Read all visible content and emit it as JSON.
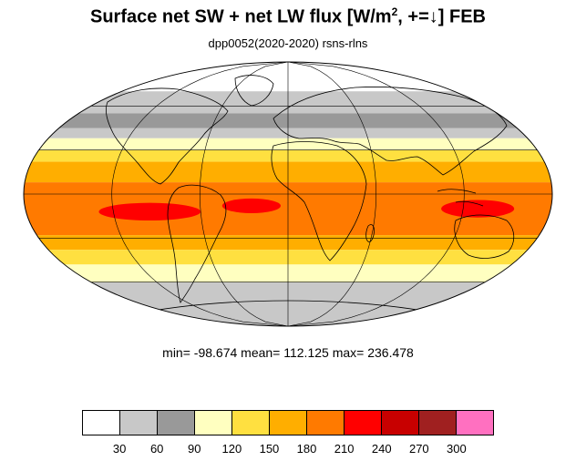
{
  "title": {
    "main_pre": "Surface net SW + net LW flux [W/m",
    "sup": "2",
    "main_post": ", +=↓]  FEB"
  },
  "subtitle": "dpp0052(2020-2020)   rsns-rlns",
  "stats": "min= -98.674   mean= 112.125   max= 236.478",
  "colorbar": {
    "colors": [
      "#ffffff",
      "#c8c8c8",
      "#999999",
      "#ffffc0",
      "#ffe040",
      "#ffae00",
      "#ff7a00",
      "#ff0000",
      "#c80000",
      "#a02020",
      "#ff70c0"
    ],
    "tick_labels": [
      "30",
      "60",
      "90",
      "120",
      "150",
      "180",
      "210",
      "240",
      "270",
      "300"
    ]
  },
  "map_data": {
    "projection": "mollweide",
    "latitude_bands": [
      {
        "lat_from": 90,
        "lat_to": 70,
        "color": "#ffffff"
      },
      {
        "lat_from": 70,
        "lat_to": 55,
        "color": "#c8c8c8"
      },
      {
        "lat_from": 55,
        "lat_to": 45,
        "color": "#999999"
      },
      {
        "lat_from": 45,
        "lat_to": 38,
        "color": "#c8c8c8"
      },
      {
        "lat_from": 38,
        "lat_to": 30,
        "color": "#ffffc0"
      },
      {
        "lat_from": 30,
        "lat_to": 22,
        "color": "#ffe040"
      },
      {
        "lat_from": 22,
        "lat_to": 8,
        "color": "#ffae00"
      },
      {
        "lat_from": 8,
        "lat_to": -28,
        "color": "#ff7a00"
      },
      {
        "lat_from": -28,
        "lat_to": -38,
        "color": "#ffae00"
      },
      {
        "lat_from": -38,
        "lat_to": -48,
        "color": "#ffe040"
      },
      {
        "lat_from": -48,
        "lat_to": -60,
        "color": "#ffffc0"
      },
      {
        "lat_from": -60,
        "lat_to": -90,
        "color": "#c8c8c8"
      }
    ],
    "red_patches": [
      {
        "lon": -95,
        "lat": -12,
        "rlon": 35,
        "rlat": 6
      },
      {
        "lon": -25,
        "lat": -8,
        "rlon": 20,
        "rlat": 5
      },
      {
        "lon": 130,
        "lat": -10,
        "rlon": 25,
        "rlat": 6
      }
    ]
  }
}
